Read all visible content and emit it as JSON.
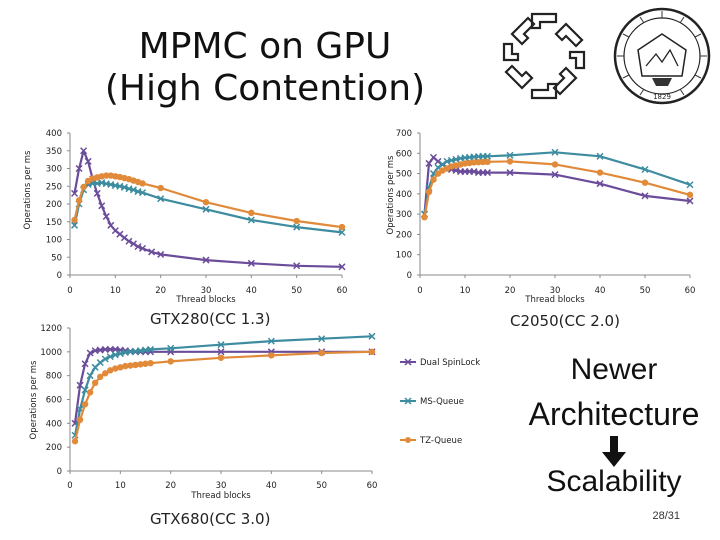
{
  "slide": {
    "title_line1": "MPMC on GPU",
    "title_line2": "(High Contention)",
    "side_line1": "Newer",
    "side_line2": "Architecture",
    "side_line3": "Scalability",
    "page": "28/31"
  },
  "colors": {
    "dual": "#6b4c9a",
    "ms": "#3d8ca0",
    "tz": "#e08a3a",
    "axis": "#8a8a8a",
    "arrow": "#111111"
  },
  "logos": {
    "left": "university-logo",
    "right": "seal-logo",
    "seal_year": "1829"
  },
  "chart_data": [
    {
      "type": "line",
      "caption": "GTX280(CC 1.3)",
      "xlabel": "Thread blocks",
      "ylabel": "Operations per ms",
      "xlim": [
        0,
        60
      ],
      "ylim": [
        0,
        400
      ],
      "xticks": [
        0,
        10,
        20,
        30,
        40,
        50,
        60
      ],
      "yticks": [
        0,
        50,
        100,
        150,
        200,
        250,
        300,
        350,
        400
      ],
      "series": [
        {
          "name": "Dual SpinLock",
          "color_key": "dual",
          "marker": "x",
          "x": [
            1,
            2,
            3,
            4,
            5,
            6,
            7,
            8,
            9,
            10,
            11,
            12,
            13,
            14,
            15,
            16,
            18,
            20,
            30,
            40,
            50,
            60
          ],
          "y": [
            230,
            300,
            350,
            320,
            270,
            230,
            195,
            165,
            140,
            125,
            115,
            105,
            95,
            88,
            80,
            75,
            65,
            58,
            42,
            33,
            26,
            23
          ]
        },
        {
          "name": "MS-Queue",
          "color_key": "ms",
          "marker": "x",
          "x": [
            1,
            2,
            3,
            4,
            5,
            6,
            7,
            8,
            9,
            10,
            11,
            12,
            13,
            14,
            15,
            16,
            20,
            30,
            40,
            50,
            60
          ],
          "y": [
            140,
            200,
            240,
            255,
            258,
            258,
            260,
            257,
            255,
            252,
            250,
            247,
            243,
            240,
            235,
            232,
            215,
            185,
            155,
            135,
            120
          ]
        },
        {
          "name": "TZ-Queue",
          "color_key": "tz",
          "marker": "o",
          "x": [
            1,
            2,
            3,
            4,
            5,
            6,
            7,
            8,
            9,
            10,
            11,
            12,
            13,
            14,
            15,
            16,
            20,
            30,
            40,
            50,
            60
          ],
          "y": [
            155,
            210,
            248,
            265,
            272,
            275,
            278,
            280,
            280,
            278,
            276,
            273,
            270,
            266,
            262,
            258,
            245,
            205,
            175,
            152,
            135
          ]
        }
      ]
    },
    {
      "type": "line",
      "caption": "C2050(CC 2.0)",
      "xlabel": "Thread blocks",
      "ylabel": "Operations per ms",
      "xlim": [
        0,
        60
      ],
      "ylim": [
        0,
        700
      ],
      "xticks": [
        0,
        10,
        20,
        30,
        40,
        50,
        60
      ],
      "yticks": [
        0,
        100,
        200,
        300,
        400,
        500,
        600,
        700
      ],
      "series": [
        {
          "name": "Dual SpinLock",
          "color_key": "dual",
          "marker": "x",
          "x": [
            1,
            2,
            3,
            4,
            5,
            6,
            7,
            8,
            9,
            10,
            11,
            12,
            13,
            14,
            15,
            20,
            30,
            40,
            50,
            60
          ],
          "y": [
            300,
            550,
            580,
            560,
            545,
            530,
            520,
            515,
            510,
            510,
            510,
            510,
            505,
            505,
            505,
            505,
            495,
            450,
            390,
            365
          ]
        },
        {
          "name": "MS-Queue",
          "color_key": "ms",
          "marker": "x",
          "x": [
            1,
            2,
            3,
            4,
            5,
            6,
            7,
            8,
            9,
            10,
            11,
            12,
            13,
            14,
            15,
            20,
            30,
            40,
            50,
            60
          ],
          "y": [
            300,
            430,
            500,
            530,
            545,
            560,
            565,
            570,
            575,
            578,
            580,
            582,
            584,
            585,
            585,
            590,
            605,
            585,
            520,
            445
          ]
        },
        {
          "name": "TZ-Queue",
          "color_key": "tz",
          "marker": "o",
          "x": [
            1,
            2,
            3,
            4,
            5,
            6,
            7,
            8,
            9,
            10,
            11,
            12,
            13,
            14,
            15,
            20,
            30,
            40,
            50,
            60
          ],
          "y": [
            285,
            410,
            470,
            500,
            515,
            525,
            535,
            540,
            545,
            550,
            552,
            555,
            556,
            557,
            558,
            560,
            545,
            505,
            455,
            395
          ]
        }
      ]
    },
    {
      "type": "line",
      "caption": "GTX680(CC 3.0)",
      "xlabel": "Thread blocks",
      "ylabel": "Operations per ms",
      "xlim": [
        0,
        60
      ],
      "ylim": [
        0,
        1200
      ],
      "xticks": [
        0,
        10,
        20,
        30,
        40,
        50,
        60
      ],
      "yticks": [
        0,
        200,
        400,
        600,
        800,
        1000,
        1200
      ],
      "series": [
        {
          "name": "Dual SpinLock",
          "color_key": "dual",
          "marker": "x",
          "x": [
            1,
            2,
            3,
            4,
            5,
            6,
            7,
            8,
            9,
            10,
            11,
            12,
            13,
            14,
            15,
            16,
            20,
            30,
            40,
            50,
            60
          ],
          "y": [
            400,
            720,
            900,
            990,
            1010,
            1015,
            1020,
            1020,
            1020,
            1015,
            1010,
            1005,
            1000,
            1000,
            1000,
            1000,
            1000,
            1000,
            1000,
            1000,
            1000
          ]
        },
        {
          "name": "MS-Queue",
          "color_key": "ms",
          "marker": "x",
          "x": [
            1,
            2,
            3,
            4,
            5,
            6,
            7,
            8,
            9,
            10,
            11,
            12,
            13,
            14,
            15,
            16,
            20,
            30,
            40,
            50,
            60
          ],
          "y": [
            300,
            520,
            680,
            800,
            870,
            910,
            940,
            960,
            975,
            985,
            995,
            1000,
            1005,
            1010,
            1015,
            1020,
            1030,
            1060,
            1090,
            1110,
            1130
          ]
        },
        {
          "name": "TZ-Queue",
          "color_key": "tz",
          "marker": "o",
          "x": [
            1,
            2,
            3,
            4,
            5,
            6,
            7,
            8,
            9,
            10,
            11,
            12,
            13,
            14,
            15,
            16,
            20,
            30,
            40,
            50,
            60
          ],
          "y": [
            250,
            430,
            560,
            660,
            740,
            790,
            820,
            845,
            860,
            870,
            880,
            885,
            890,
            895,
            900,
            905,
            920,
            950,
            970,
            990,
            1000
          ]
        }
      ]
    }
  ]
}
